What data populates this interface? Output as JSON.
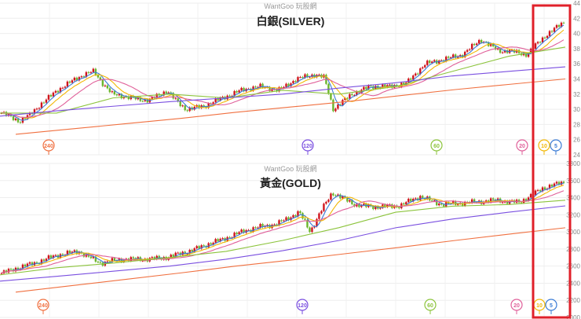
{
  "chart_data": [
    {
      "type": "candlestick",
      "watermark": "WantGoo 玩股網",
      "title": "白銀(SILVER)",
      "y_ticks": [
        44,
        42,
        40,
        38,
        36,
        34,
        32,
        30,
        28,
        26,
        24
      ],
      "ylim": [
        24,
        44
      ],
      "grid": true,
      "up_color": "#d0141c",
      "down_color": "#6bb52b",
      "close": [
        29.5,
        29.0,
        28.4,
        29.2,
        30.4,
        31.4,
        32.5,
        33.2,
        34.0,
        34.6,
        35.0,
        33.4,
        32.0,
        31.8,
        31.5,
        31.3,
        31.2,
        31.8,
        32.5,
        31.0,
        30.0,
        30.2,
        30.4,
        31.0,
        31.5,
        32.0,
        32.5,
        32.8,
        33.0,
        32.8,
        32.5,
        33.2,
        34.0,
        34.3,
        34.6,
        34.2,
        30.0,
        31.0,
        32.0,
        32.5,
        33.0,
        33.0,
        33.0,
        33.2,
        33.5,
        34.8,
        36.0,
        36.3,
        36.6,
        36.9,
        37.2,
        38.2,
        39.2,
        38.4,
        37.7,
        37.7,
        37.5,
        37.2,
        38.5,
        39.7,
        40.6,
        41.5
      ],
      "moving_averages": [
        {
          "label": "5",
          "color": "#3a7bd5",
          "marker": "5"
        },
        {
          "label": "10",
          "color": "#f2b705",
          "marker": "10"
        },
        {
          "label": "20",
          "color": "#e0609a",
          "marker": "20"
        },
        {
          "label": "60",
          "color": "#8cc43c",
          "marker": "60",
          "values": [
            29.5,
            29.5,
            31.5,
            32.0,
            31.5,
            32.5,
            32.0,
            33.0,
            35.0,
            37.0,
            38.2
          ]
        },
        {
          "label": "120",
          "color": "#7a4fe0",
          "marker": "120",
          "values": [
            29.1,
            29.8,
            30.4,
            31.0,
            31.5,
            32.0,
            32.8,
            33.5,
            34.4,
            35.0,
            35.6
          ]
        },
        {
          "label": "240",
          "color": "#f07040",
          "marker": "240",
          "values": [
            26.7,
            27.4,
            28.1,
            28.8,
            29.6,
            30.3,
            31.0,
            31.8,
            32.6,
            33.3,
            34.0
          ]
        }
      ]
    },
    {
      "type": "candlestick",
      "watermark": "WantGoo 玩股網",
      "title": "黃金(GOLD)",
      "y_ticks": [
        3800,
        3600,
        3400,
        3200,
        3000,
        2800,
        2600,
        2400,
        2200,
        2000
      ],
      "ylim": [
        2000,
        3800
      ],
      "grid": true,
      "up_color": "#d0141c",
      "down_color": "#6bb52b",
      "close": [
        2516,
        2560,
        2600,
        2635,
        2680,
        2727,
        2750,
        2772,
        2700,
        2635,
        2660,
        2680,
        2680,
        2680,
        2690,
        2700,
        2740,
        2772,
        2820,
        2870,
        2910,
        2960,
        3010,
        3048,
        3070,
        3094,
        3160,
        3231,
        3002,
        3250,
        3460,
        3390,
        3323,
        3300,
        3290,
        3300,
        3300,
        3360,
        3415,
        3360,
        3320,
        3330,
        3340,
        3350,
        3360,
        3370,
        3350,
        3350,
        3420,
        3506,
        3545,
        3580
      ],
      "moving_averages": [
        {
          "label": "5",
          "color": "#3a7bd5",
          "marker": "5"
        },
        {
          "label": "10",
          "color": "#f2b705",
          "marker": "10"
        },
        {
          "label": "20",
          "color": "#e0609a",
          "marker": "20"
        },
        {
          "label": "60",
          "color": "#8cc43c",
          "marker": "60",
          "values": [
            2497,
            2580,
            2635,
            2700,
            2772,
            2900,
            3050,
            3230,
            3300,
            3320,
            3370
          ]
        },
        {
          "label": "120",
          "color": "#7a4fe0",
          "marker": "120",
          "values": [
            2424,
            2480,
            2540,
            2600,
            2680,
            2780,
            2900,
            3048,
            3150,
            3230,
            3304
          ]
        },
        {
          "label": "240",
          "color": "#f07040",
          "marker": "240",
          "values": [
            2296,
            2370,
            2445,
            2520,
            2600,
            2670,
            2745,
            2820,
            2900,
            2975,
            3048
          ]
        }
      ]
    }
  ]
}
